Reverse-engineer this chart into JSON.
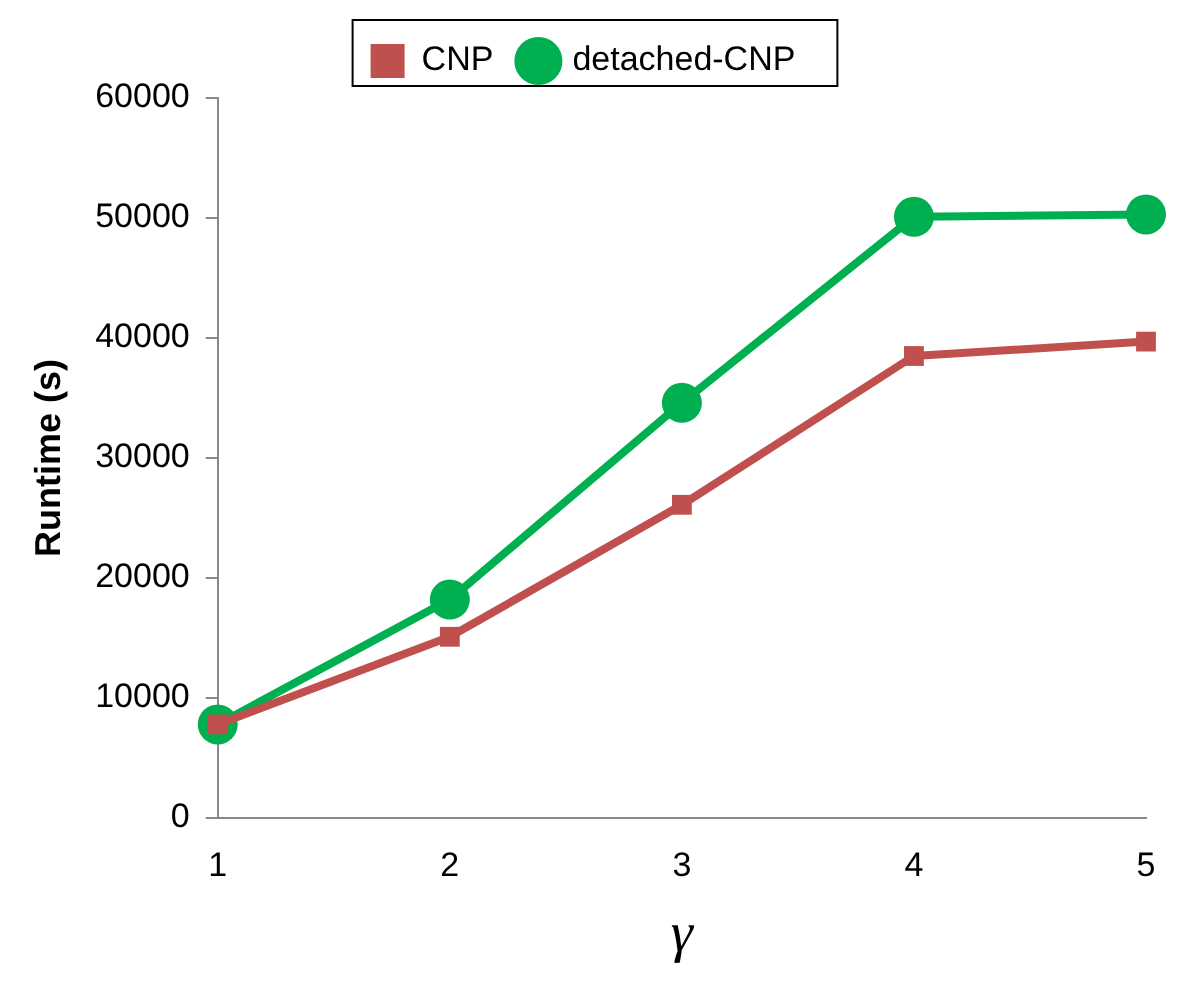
{
  "chart_data": {
    "type": "line",
    "xlabel": "γ",
    "ylabel": "Runtime (s)",
    "categories": [
      "1",
      "2",
      "3",
      "4",
      "5"
    ],
    "ylim": [
      0,
      60000
    ],
    "yticks": [
      0,
      10000,
      20000,
      30000,
      40000,
      50000,
      60000
    ],
    "grid": false,
    "legend": "top",
    "line_style": "solid",
    "series": [
      {
        "name": "CNP",
        "color": "#c0504d",
        "marker": "square",
        "values": [
          7800,
          15100,
          26100,
          38500,
          39700
        ]
      },
      {
        "name": "detached-CNP",
        "color": "#00b050",
        "marker": "circle",
        "values": [
          7800,
          18200,
          34600,
          50100,
          50300
        ]
      }
    ]
  }
}
